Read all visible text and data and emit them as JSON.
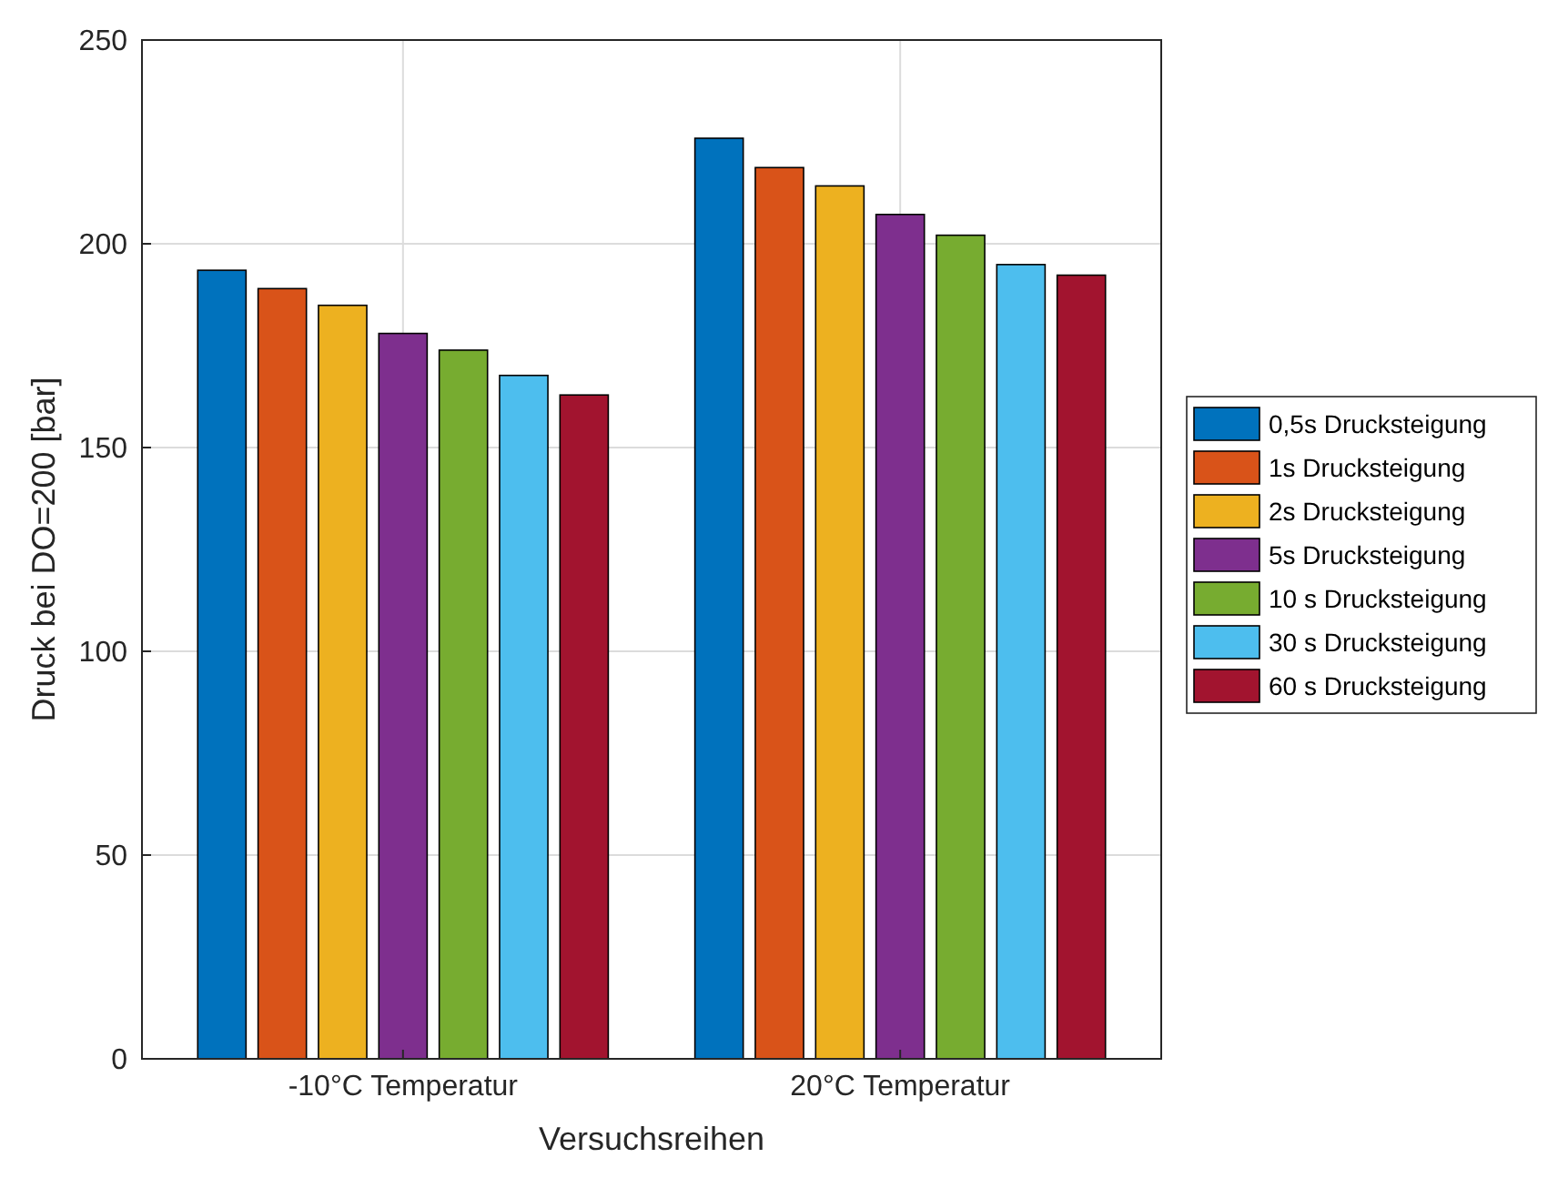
{
  "chart_data": {
    "type": "bar",
    "xlabel": "Versuchsreihen",
    "ylabel": "Druck bei DO=200 [bar]",
    "categories": [
      "-10°C Temperatur",
      "20°C Temperatur"
    ],
    "series": [
      {
        "name": "0,5s Drucksteigung",
        "color": "#0072bd",
        "values": [
          193.5,
          225.9
        ]
      },
      {
        "name": "1s Drucksteigung",
        "color": "#d95319",
        "values": [
          189,
          218.7
        ]
      },
      {
        "name": "2s Drucksteigung",
        "color": "#edb120",
        "values": [
          184.9,
          214.2
        ]
      },
      {
        "name": "5s Drucksteigung",
        "color": "#7e2f8e",
        "values": [
          178,
          207.2
        ]
      },
      {
        "name": "10 s Drucksteigung",
        "color": "#77ac30",
        "values": [
          173.9,
          202.1
        ]
      },
      {
        "name": "30 s Drucksteigung",
        "color": "#4dbeee",
        "values": [
          167.7,
          194.9
        ]
      },
      {
        "name": "60 s Drucksteigung",
        "color": "#a2142f",
        "values": [
          162.9,
          192.3
        ]
      }
    ],
    "ylim": [
      0,
      250
    ],
    "yticks": [
      0,
      50,
      100,
      150,
      200,
      250
    ],
    "grid": true,
    "legend": "right"
  }
}
